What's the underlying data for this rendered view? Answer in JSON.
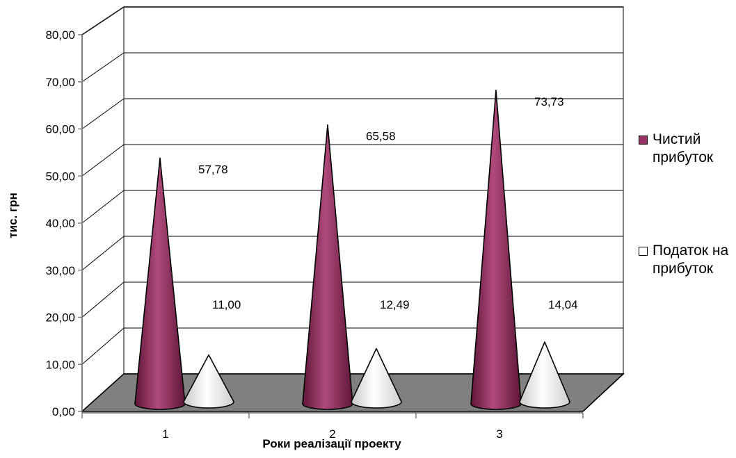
{
  "chart_data": {
    "type": "bar",
    "shape": "cone",
    "title": "",
    "xlabel": "Роки реалізації проекту",
    "ylabel": "тис. грн",
    "categories": [
      "1",
      "2",
      "3"
    ],
    "ylim": [
      0,
      80
    ],
    "yticks": [
      "0,00",
      "10,00",
      "20,00",
      "30,00",
      "40,00",
      "50,00",
      "60,00",
      "70,00",
      "80,00"
    ],
    "grid": true,
    "legend_position": "right",
    "series": [
      {
        "name": "Чистий прибуток",
        "values": [
          57.78,
          65.58,
          73.73
        ],
        "labels": [
          "57,78",
          "65,58",
          "73,73"
        ],
        "color": "#993366"
      },
      {
        "name": "Податок на прибуток",
        "values": [
          11.0,
          12.49,
          14.04
        ],
        "labels": [
          "11,00",
          "12,49",
          "14,04"
        ],
        "color": "#ffffff"
      }
    ],
    "floor_color": "#808080"
  }
}
